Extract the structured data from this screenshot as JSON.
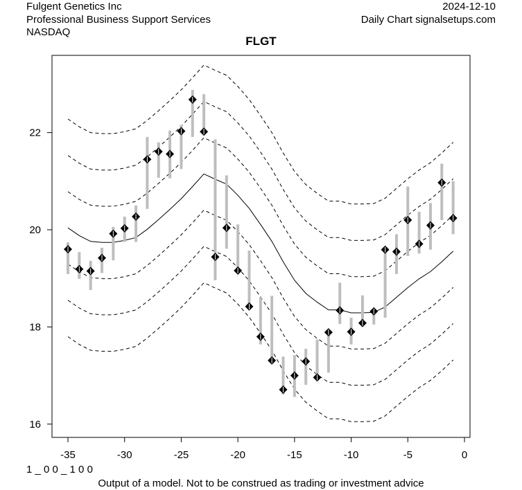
{
  "header": {
    "company": "Fulgent Genetics Inc",
    "industry": "Professional Business Support Services",
    "exchange": "NASDAQ",
    "date": "2024-12-10",
    "source": "Daily Chart signalsetups.com"
  },
  "footer": {
    "code": "1 _ 0 0 _ 1 0 0",
    "disclaimer": "Output of a model. Not to be construed as trading or investment advice"
  },
  "chart_data": {
    "type": "line",
    "title": "FLGT",
    "xlabel": "",
    "ylabel": "",
    "xlim": [
      -36.4,
      0.5
    ],
    "ylim": [
      15.75,
      23.6
    ],
    "x_ticks": [
      -35,
      -30,
      -25,
      -20,
      -15,
      -10,
      -5,
      0
    ],
    "x_tick_labels": [
      "-35",
      "-30",
      "-25",
      "-20",
      "-15",
      "-10",
      "-5",
      "0"
    ],
    "y_ticks": [
      16,
      18,
      20,
      22
    ],
    "y_tick_labels": [
      "16",
      "18",
      "20",
      "22"
    ],
    "colors": {
      "bars": "#bebebe",
      "points": "#000000",
      "lines": "#000000"
    },
    "band_offsets": [
      -2.24,
      -1.49,
      -0.745,
      0.745,
      1.49,
      2.24
    ],
    "x": [
      -35,
      -34,
      -33,
      -32,
      -31,
      -30,
      -29,
      -28,
      -27,
      -26,
      -25,
      -24,
      -23,
      -22,
      -21,
      -20,
      -19,
      -18,
      -17,
      -16,
      -15,
      -14,
      -13,
      -12,
      -11,
      -10,
      -9,
      -8,
      -7,
      -6,
      -5,
      -4,
      -3,
      -2,
      -1
    ],
    "close": [
      19.6,
      19.19,
      19.15,
      19.42,
      19.92,
      20.03,
      20.27,
      21.45,
      21.61,
      21.56,
      22.03,
      22.68,
      22.02,
      19.44,
      20.04,
      19.16,
      18.42,
      17.8,
      17.31,
      16.71,
      17.0,
      17.29,
      16.96,
      17.89,
      18.34,
      17.9,
      18.08,
      18.32,
      19.59,
      19.55,
      20.2,
      19.71,
      20.09,
      20.97,
      20.24
    ],
    "high": [
      19.74,
      19.54,
      19.36,
      19.63,
      20.06,
      20.27,
      20.5,
      21.91,
      21.8,
      22.04,
      22.16,
      22.88,
      22.79,
      21.86,
      21.12,
      20.11,
      19.57,
      18.61,
      18.64,
      17.39,
      17.42,
      17.55,
      17.74,
      17.95,
      18.91,
      18.19,
      18.65,
      18.36,
      19.64,
      19.91,
      20.89,
      20.37,
      20.55,
      21.36,
      21.0
    ],
    "low": [
      19.09,
      18.99,
      18.76,
      19.11,
      19.37,
      19.75,
      19.75,
      20.43,
      21.07,
      21.06,
      21.25,
      21.91,
      22.01,
      18.96,
      19.61,
      19.1,
      18.39,
      17.64,
      17.3,
      16.61,
      16.56,
      16.81,
      16.94,
      17.06,
      18.06,
      17.64,
      18.01,
      18.05,
      18.19,
      19.09,
      19.46,
      19.51,
      19.59,
      20.2,
      19.91
    ],
    "center": [
      20.04,
      19.88,
      19.76,
      19.74,
      19.74,
      19.78,
      19.84,
      20.01,
      20.21,
      20.42,
      20.64,
      20.89,
      21.15,
      21.04,
      20.94,
      20.71,
      20.44,
      20.11,
      19.76,
      19.34,
      18.96,
      18.69,
      18.51,
      18.35,
      18.35,
      18.29,
      18.29,
      18.3,
      18.41,
      18.61,
      18.81,
      18.99,
      19.14,
      19.34,
      19.56
    ]
  }
}
